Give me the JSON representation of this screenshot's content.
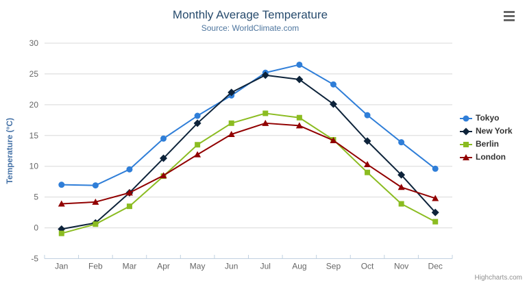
{
  "header": {
    "title": "Monthly Average Temperature",
    "subtitle": "Source: WorldClimate.com"
  },
  "credits": "Highcharts.com",
  "colors": {
    "title": "#274b6d",
    "subtitle": "#4d759e",
    "axis_label": "#666666",
    "axis_title": "#4572a7",
    "grid": "#d8d8d8",
    "axis_line": "#c0d0e0",
    "legend_text": "#333333",
    "credits": "#909090",
    "menu_icon": "#666666",
    "background": "#ffffff"
  },
  "chart_data": {
    "type": "line",
    "title": "Monthly Average Temperature",
    "subtitle": "Source: WorldClimate.com",
    "categories": [
      "Jan",
      "Feb",
      "Mar",
      "Apr",
      "May",
      "Jun",
      "Jul",
      "Aug",
      "Sep",
      "Oct",
      "Nov",
      "Dec"
    ],
    "xlabel": "",
    "ylabel": "Temperature (°C)",
    "ylim": [
      -5,
      30
    ],
    "ytick_step": 5,
    "grid": true,
    "legend_position": "right",
    "series": [
      {
        "name": "Tokyo",
        "color": "#2f7ed8",
        "marker": "circle",
        "values": [
          7.0,
          6.9,
          9.5,
          14.5,
          18.2,
          21.5,
          25.2,
          26.5,
          23.3,
          18.3,
          13.9,
          9.6
        ]
      },
      {
        "name": "New York",
        "color": "#0d233a",
        "marker": "diamond",
        "values": [
          -0.2,
          0.8,
          5.7,
          11.3,
          17.0,
          22.0,
          24.8,
          24.1,
          20.1,
          14.1,
          8.6,
          2.5
        ]
      },
      {
        "name": "Berlin",
        "color": "#8bbc21",
        "marker": "square",
        "values": [
          -0.9,
          0.6,
          3.5,
          8.4,
          13.5,
          17.0,
          18.6,
          17.9,
          14.3,
          9.0,
          3.9,
          1.0
        ]
      },
      {
        "name": "London",
        "color": "#910000",
        "marker": "triangle",
        "values": [
          3.9,
          4.2,
          5.7,
          8.5,
          11.9,
          15.2,
          17.0,
          16.6,
          14.2,
          10.3,
          6.6,
          4.8
        ]
      }
    ]
  }
}
